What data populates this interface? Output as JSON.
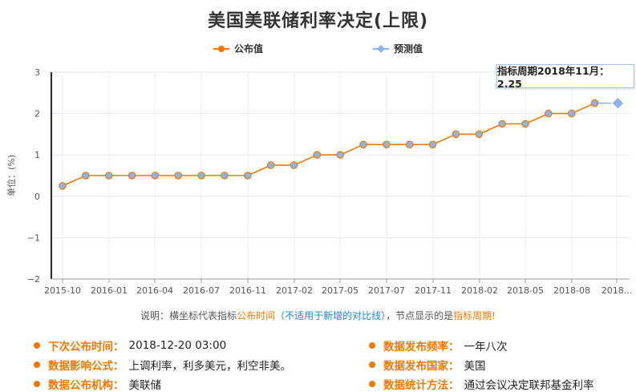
{
  "chart_data": {
    "type": "line",
    "title": "美国美联储利率决定(上限)",
    "ylabel": "单位：(%)",
    "xlabel": "",
    "ylim": [
      -2,
      3
    ],
    "yticks": [
      "3",
      "2",
      "1",
      "0",
      "−1",
      "−2"
    ],
    "xticks": [
      "2015-10",
      "2016-01",
      "2016-04",
      "2016-07",
      "2016-11",
      "2017-02",
      "2017-05",
      "2017-07",
      "2017-11",
      "2018-02",
      "2018-05",
      "2018-08",
      "2018..."
    ],
    "grid": true,
    "legend_position": "top",
    "series": [
      {
        "name": "公布值",
        "color": "#f07800",
        "values": [
          0.25,
          0.5,
          0.5,
          0.5,
          0.5,
          0.5,
          0.5,
          0.5,
          0.5,
          0.75,
          0.75,
          1.0,
          1.0,
          1.25,
          1.25,
          1.25,
          1.25,
          1.5,
          1.5,
          1.75,
          1.75,
          2.0,
          2.0,
          2.25
        ]
      },
      {
        "name": "预测值",
        "color": "#8cb4e6",
        "values": [
          null,
          null,
          null,
          null,
          null,
          null,
          null,
          null,
          null,
          null,
          null,
          null,
          null,
          null,
          null,
          null,
          null,
          null,
          null,
          null,
          null,
          null,
          null,
          2.25,
          2.25
        ]
      }
    ],
    "tooltip": "指标周期2018年11月：2.25"
  },
  "note": {
    "p1": "说明：横坐标代表指标",
    "p2": "公布时间",
    "p3": "（不适用于新增的对比线）",
    "p4": "，节点显示的是",
    "p5": "指标周期",
    "p6": "!"
  },
  "info": {
    "next_label": "下次公布时间：",
    "next_value": "2018-12-20 03:00",
    "freq_label": "数据发布频率：",
    "freq_value": "一年八次",
    "formula_label": "数据影响公式：",
    "formula_value": "上调利率，利多美元，利空非美。",
    "country_label": "数据发布国家：",
    "country_value": "美国",
    "agency_label": "数据公布机构：",
    "agency_value": "美联储",
    "method_label": "数据统计方法：",
    "method_value": "通过会议决定联邦基金利率"
  }
}
